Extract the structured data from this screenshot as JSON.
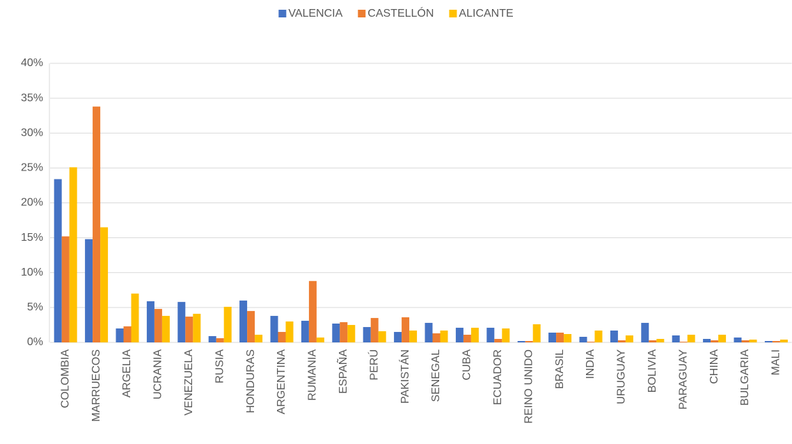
{
  "chart_data": {
    "type": "bar",
    "categories": [
      "COLOMBIA",
      "MARRUECOS",
      "ARGELIA",
      "UCRANIA",
      "VENEZUELA",
      "RUSIA",
      "HONDURAS",
      "ARGENTINA",
      "RUMANIA",
      "ESPAÑA",
      "PERÚ",
      "PAKISTÁN",
      "SENEGAL",
      "CUBA",
      "ECUADOR",
      "REINO UNIDO",
      "BRASIL",
      "INDIA",
      "URUGUAY",
      "BOLIVIA",
      "PARAGUAY",
      "CHINA",
      "BULGARIA",
      "MALI"
    ],
    "series": [
      {
        "name": "VALENCIA",
        "color": "#4472c4",
        "values": [
          23.4,
          14.8,
          2.0,
          5.9,
          5.8,
          0.9,
          6.0,
          3.8,
          3.1,
          2.7,
          2.2,
          1.5,
          2.8,
          2.1,
          2.1,
          0.2,
          1.4,
          0.8,
          1.7,
          2.8,
          1.0,
          0.5,
          0.7,
          0.2
        ]
      },
      {
        "name": "CASTELLÓN",
        "color": "#ed7d31",
        "values": [
          15.2,
          33.8,
          2.3,
          4.8,
          3.7,
          0.6,
          4.5,
          1.5,
          8.8,
          2.9,
          3.5,
          3.6,
          1.3,
          1.1,
          0.5,
          0.2,
          1.4,
          0.1,
          0.3,
          0.3,
          0.1,
          0.3,
          0.3,
          0.2
        ]
      },
      {
        "name": "ALICANTE",
        "color": "#ffc000",
        "values": [
          25.1,
          16.5,
          7.0,
          3.8,
          4.1,
          5.1,
          1.1,
          3.0,
          0.7,
          2.5,
          1.6,
          1.7,
          1.7,
          2.1,
          2.0,
          2.6,
          1.2,
          1.7,
          1.0,
          0.5,
          1.1,
          1.1,
          0.4,
          0.4
        ]
      }
    ],
    "ylim": [
      0,
      40
    ],
    "yticks": [
      {
        "value": 0,
        "label": "0%"
      },
      {
        "value": 5,
        "label": "5%"
      },
      {
        "value": 10,
        "label": "10%"
      },
      {
        "value": 15,
        "label": "15%"
      },
      {
        "value": 20,
        "label": "20%"
      },
      {
        "value": 25,
        "label": "25%"
      },
      {
        "value": 30,
        "label": "30%"
      },
      {
        "value": 35,
        "label": "35%"
      },
      {
        "value": 40,
        "label": "40%"
      }
    ],
    "grid": true,
    "legend": "top"
  }
}
